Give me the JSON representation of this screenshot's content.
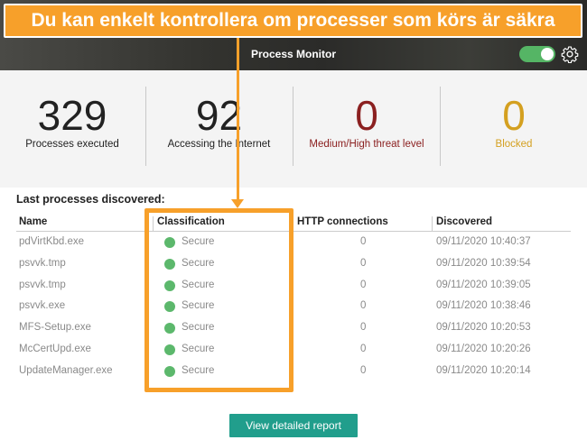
{
  "callout_text": "Du kan enkelt kontrollera om processer som körs är säkra",
  "header": {
    "title": "Process Monitor",
    "toggle_on": true
  },
  "stats": [
    {
      "value": "329",
      "label": "Processes executed",
      "color": "#222222"
    },
    {
      "value": "92",
      "label": "Accessing the Internet",
      "color": "#222222"
    },
    {
      "value": "0",
      "label": "Medium/High threat level",
      "color": "#8b2020"
    },
    {
      "value": "0",
      "label": "Blocked",
      "color": "#d4a020"
    }
  ],
  "section_title": "Last processes discovered:",
  "table": {
    "columns": [
      "Name",
      "Classification",
      "HTTP connections",
      "Discovered"
    ],
    "rows": [
      {
        "name": "pdVirtKbd.exe",
        "classification": "Secure",
        "http": "0",
        "discovered": "09/11/2020 10:40:37"
      },
      {
        "name": "psvvk.tmp",
        "classification": "Secure",
        "http": "0",
        "discovered": "09/11/2020 10:39:54"
      },
      {
        "name": "psvvk.tmp",
        "classification": "Secure",
        "http": "0",
        "discovered": "09/11/2020 10:39:05"
      },
      {
        "name": "psvvk.exe",
        "classification": "Secure",
        "http": "0",
        "discovered": "09/11/2020 10:38:46"
      },
      {
        "name": "MFS-Setup.exe",
        "classification": "Secure",
        "http": "0",
        "discovered": "09/11/2020 10:20:53"
      },
      {
        "name": "McCertUpd.exe",
        "classification": "Secure",
        "http": "0",
        "discovered": "09/11/2020 10:20:26"
      },
      {
        "name": "UpdateManager.exe",
        "classification": "Secure",
        "http": "0",
        "discovered": "09/11/2020 10:20:14"
      }
    ]
  },
  "report_button_label": "View detailed report",
  "colors": {
    "accent": "#f7a02a",
    "secure": "#5cb86c",
    "button": "#219e8c",
    "toggle": "#55b565"
  },
  "icons": {
    "settings": "gear-icon",
    "status": "status-dot-icon"
  }
}
